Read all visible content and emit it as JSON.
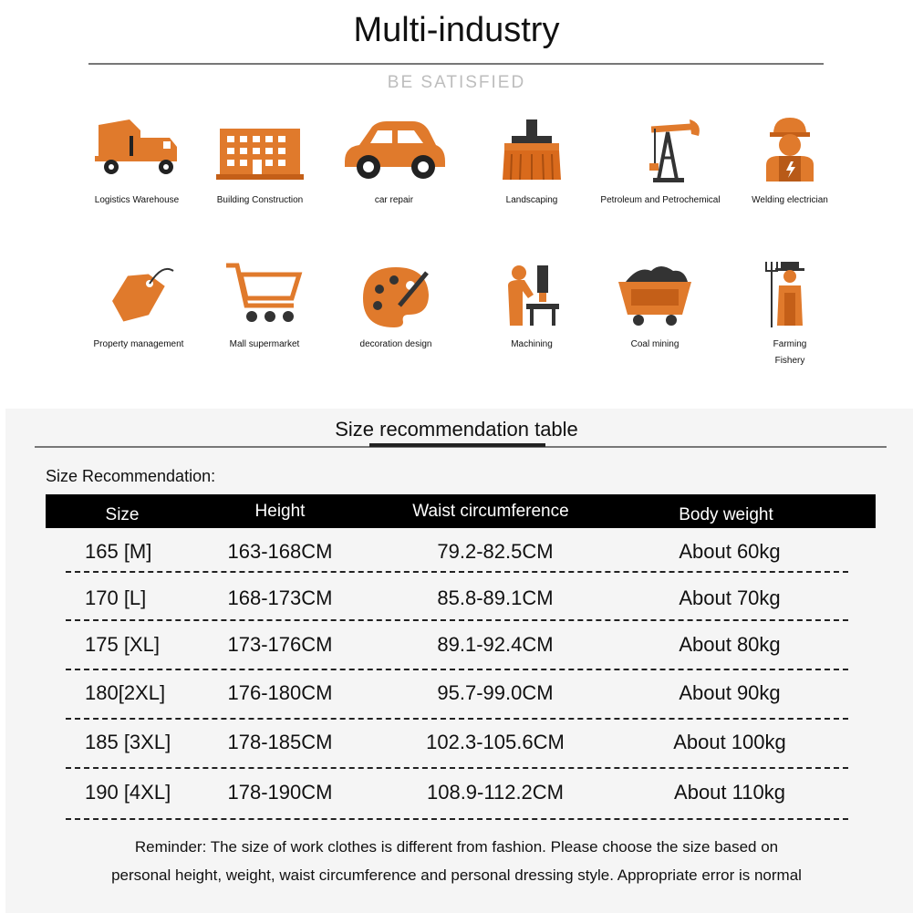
{
  "header": {
    "title": "Multi-industry",
    "subtitle": "BE SATISFIED"
  },
  "industries": [
    {
      "label": "Logistics Warehouse",
      "icon": "cement-truck-icon"
    },
    {
      "label": "Building Construction",
      "icon": "building-icon"
    },
    {
      "label": "car repair",
      "icon": "car-icon"
    },
    {
      "label": "Landscaping",
      "icon": "brush-icon"
    },
    {
      "label": "Petroleum and Petrochemical",
      "icon": "oil-pump-icon"
    },
    {
      "label": "Welding electrician",
      "icon": "worker-icon"
    },
    {
      "label": "Property management",
      "icon": "price-tag-icon"
    },
    {
      "label": "Mall supermarket",
      "icon": "shopping-cart-icon"
    },
    {
      "label": "decoration design",
      "icon": "paint-palette-icon"
    },
    {
      "label": "Machining",
      "icon": "machinist-icon"
    },
    {
      "label": "Coal mining",
      "icon": "mine-cart-icon"
    },
    {
      "label": "Farming\nFishery",
      "icon": "farmer-icon"
    }
  ],
  "size_section": {
    "title": "Size recommendation table",
    "label": "Size Recommendation:",
    "columns": [
      "Size",
      "Height",
      "Waist circumference",
      "Body weight"
    ],
    "rows": [
      {
        "size": "165 [M]",
        "height": "163-168CM",
        "waist": "79.2-82.5CM",
        "weight": "About 60kg"
      },
      {
        "size": "170  [L]",
        "height": "168-173CM",
        "waist": "85.8-89.1CM",
        "weight": "About 70kg"
      },
      {
        "size": "175 [XL]",
        "height": "173-176CM",
        "waist": "89.1-92.4CM",
        "weight": "About 80kg"
      },
      {
        "size": "180[2XL]",
        "height": "176-180CM",
        "waist": "95.7-99.0CM",
        "weight": "About 90kg"
      },
      {
        "size": "185 [3XL]",
        "height": "178-185CM",
        "waist": "102.3-105.6CM",
        "weight": "About 100kg"
      },
      {
        "size": "190 [4XL]",
        "height": "178-190CM",
        "waist": "108.9-112.2CM",
        "weight": "About 110kg"
      }
    ],
    "reminder_lines": [
      "Reminder: The size of work clothes is different from fashion. Please choose the size based on",
      "personal height, weight, waist circumference and personal dressing style. Appropriate error is normal"
    ]
  },
  "colors": {
    "accent": "#e07a2c",
    "header_bg": "#000000",
    "panel_bg": "#f5f5f5"
  }
}
